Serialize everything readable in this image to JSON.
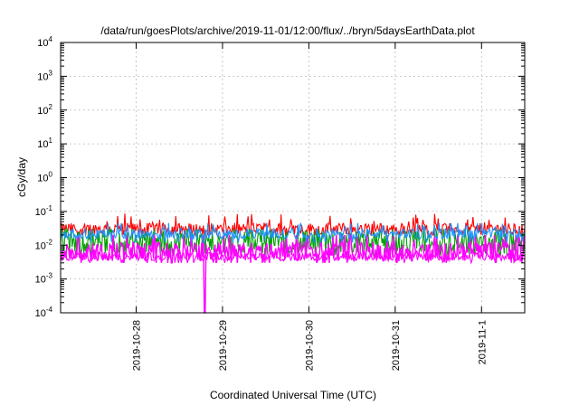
{
  "chart_data": {
    "type": "line",
    "title": "/data/run/goesPlots/archive/2019-11-01/12:00/flux/../bryn/5daysEarthData.plot",
    "xlabel": "Coordinated Universal Time (UTC)",
    "ylabel": "cGy/day",
    "yscale": "log",
    "ylim": [
      0.0001,
      10000
    ],
    "xlim": [
      "2019-10-27 03:00",
      "2019-11-01 12:00"
    ],
    "grid": true,
    "x_ticks": [
      {
        "value": "2019-10-28",
        "label": "2019-10-28"
      },
      {
        "value": "2019-10-29",
        "label": "2019-10-29"
      },
      {
        "value": "2019-10-30",
        "label": "2019-10-30"
      },
      {
        "value": "2019-10-31",
        "label": "2019-10-31"
      },
      {
        "value": "2019-11-01",
        "label": "2019-11-1"
      }
    ],
    "y_ticks": [
      {
        "exp": "-4"
      },
      {
        "exp": "-3"
      },
      {
        "exp": "-2"
      },
      {
        "exp": "-1"
      },
      {
        "exp": "0"
      },
      {
        "exp": "1"
      },
      {
        "exp": "2"
      },
      {
        "exp": "3"
      },
      {
        "exp": "4"
      }
    ],
    "series_colors": [
      "#ff0000",
      "#008000",
      "#ff00ff",
      "#1e90ff",
      "#ff00ff"
    ],
    "series": [
      {
        "color": "#ff0000",
        "typical": 0.03,
        "spread": 0.18,
        "min": 0.02,
        "max": 0.09
      },
      {
        "color": "#00a000",
        "typical": 0.012,
        "spread": 0.35,
        "min": 0.005,
        "max": 0.03
      },
      {
        "color": "#ff00ff",
        "typical": 0.0065,
        "spread": 0.28,
        "min": 0.003,
        "max": 0.02
      },
      {
        "color": "#1e90ff",
        "typical": 0.022,
        "spread": 0.15,
        "min": 0.012,
        "max": 0.045
      },
      {
        "color": "#ff00ff",
        "typical": 0.0045,
        "spread": 0.12,
        "min": 0.003,
        "max": 0.006
      }
    ],
    "annotations": [
      {
        "type": "drop",
        "x": "2019-10-28 19:00",
        "series": 2,
        "value": 0.0001
      }
    ]
  }
}
